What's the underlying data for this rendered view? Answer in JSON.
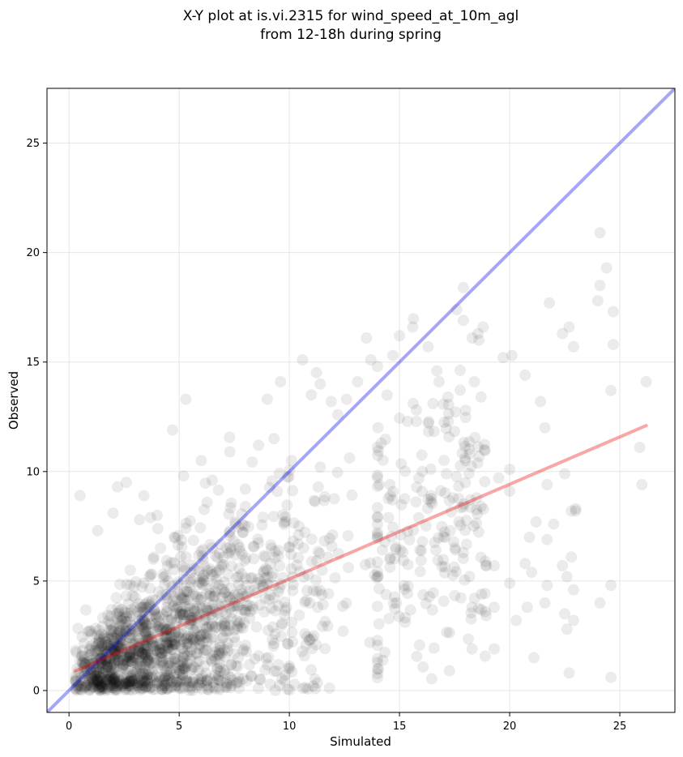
{
  "chart_data": {
    "type": "scatter",
    "title_lines": [
      "X-Y plot at is.vi.2315 for wind_speed_at_10m_agl",
      "from 12-18h during spring"
    ],
    "xlabel": "Simulated",
    "ylabel": "Observed",
    "xlim": [
      -1,
      27.5
    ],
    "ylim": [
      -1,
      27.5
    ],
    "xticks": [
      0,
      5,
      10,
      15,
      20,
      25
    ],
    "yticks": [
      0,
      5,
      10,
      15,
      20,
      25
    ],
    "grid": true,
    "point_color": "#000000",
    "point_alpha": 0.08,
    "one_to_one_line": {
      "color": "#0000ee",
      "alpha": 0.35,
      "x": [
        -1,
        27.5
      ],
      "y": [
        -1,
        27.5
      ]
    },
    "regression_line": {
      "color": "#ee0000",
      "alpha": 0.35,
      "x": [
        0.3,
        26.2
      ],
      "y": [
        0.9,
        12.1
      ]
    },
    "highlighted_points": [
      [
        0.5,
        8.9
      ],
      [
        1.3,
        7.3
      ],
      [
        2.0,
        8.1
      ],
      [
        2.2,
        9.3
      ],
      [
        2.6,
        9.5
      ],
      [
        3.2,
        7.8
      ],
      [
        3.4,
        8.9
      ],
      [
        3.7,
        7.9
      ],
      [
        4.0,
        8.0
      ],
      [
        4.7,
        11.9
      ],
      [
        5.3,
        13.3
      ],
      [
        5.2,
        9.8
      ],
      [
        6.0,
        10.5
      ],
      [
        6.5,
        9.6
      ],
      [
        7.3,
        10.9
      ],
      [
        8.0,
        9.2
      ],
      [
        8.6,
        11.2
      ],
      [
        9.0,
        13.3
      ],
      [
        9.3,
        11.5
      ],
      [
        9.6,
        14.1
      ],
      [
        10.1,
        10.5
      ],
      [
        10.6,
        15.1
      ],
      [
        11.0,
        13.5
      ],
      [
        11.4,
        14.0
      ],
      [
        11.9,
        13.2
      ],
      [
        12.2,
        12.6
      ],
      [
        12.6,
        13.3
      ],
      [
        13.1,
        14.1
      ],
      [
        13.5,
        16.1
      ],
      [
        13.7,
        15.1
      ],
      [
        14.0,
        14.8
      ],
      [
        14.7,
        15.3
      ],
      [
        15.0,
        16.2
      ],
      [
        15.6,
        16.6
      ],
      [
        16.3,
        15.7
      ],
      [
        16.7,
        14.6
      ],
      [
        17.6,
        17.4
      ],
      [
        17.9,
        18.4
      ],
      [
        18.3,
        16.1
      ],
      [
        18.6,
        16.0
      ],
      [
        18.8,
        16.6
      ],
      [
        17.9,
        16.9
      ],
      [
        18.4,
        14.1
      ],
      [
        17.2,
        13.4
      ],
      [
        16.8,
        14.1
      ],
      [
        18.0,
        12.8
      ],
      [
        18.7,
        13.4
      ],
      [
        19.7,
        15.2
      ],
      [
        20.1,
        15.3
      ],
      [
        20.7,
        14.4
      ],
      [
        21.4,
        13.2
      ],
      [
        21.8,
        17.7
      ],
      [
        22.4,
        16.3
      ],
      [
        22.7,
        16.6
      ],
      [
        22.9,
        15.7
      ],
      [
        24.1,
        20.9
      ],
      [
        24.4,
        19.3
      ],
      [
        24.0,
        17.8
      ],
      [
        24.1,
        18.5
      ],
      [
        24.7,
        17.3
      ],
      [
        24.6,
        13.7
      ],
      [
        24.7,
        15.8
      ],
      [
        25.9,
        11.1
      ],
      [
        26.0,
        9.4
      ],
      [
        26.2,
        14.1
      ],
      [
        21.6,
        12.0
      ],
      [
        21.7,
        9.4
      ],
      [
        22.5,
        9.9
      ],
      [
        20.0,
        10.1
      ],
      [
        19.5,
        9.7
      ],
      [
        20.0,
        9.1
      ],
      [
        20.9,
        7.0
      ],
      [
        21.2,
        7.7
      ],
      [
        22.0,
        7.6
      ],
      [
        22.8,
        8.2
      ],
      [
        23.0,
        8.3
      ],
      [
        21.7,
        6.9
      ],
      [
        22.4,
        5.7
      ],
      [
        22.6,
        5.2
      ],
      [
        22.8,
        6.1
      ],
      [
        21.0,
        5.4
      ],
      [
        20.7,
        5.8
      ],
      [
        20.0,
        4.9
      ],
      [
        20.3,
        3.2
      ],
      [
        20.8,
        3.8
      ],
      [
        21.6,
        4.0
      ],
      [
        21.7,
        4.8
      ],
      [
        22.5,
        3.5
      ],
      [
        22.9,
        3.2
      ],
      [
        22.7,
        0.8
      ],
      [
        21.1,
        1.5
      ],
      [
        19.3,
        1.9
      ],
      [
        18.9,
        3.6
      ],
      [
        19.3,
        3.8
      ],
      [
        18.9,
        5.9
      ],
      [
        19.3,
        5.7
      ],
      [
        17.9,
        6.3
      ],
      [
        17.3,
        7.3
      ],
      [
        18.5,
        8.8
      ],
      [
        24.1,
        4.0
      ],
      [
        24.6,
        4.8
      ],
      [
        24.6,
        0.6
      ],
      [
        22.6,
        2.8
      ],
      [
        22.9,
        4.6
      ],
      [
        23.0,
        8.2
      ]
    ]
  }
}
